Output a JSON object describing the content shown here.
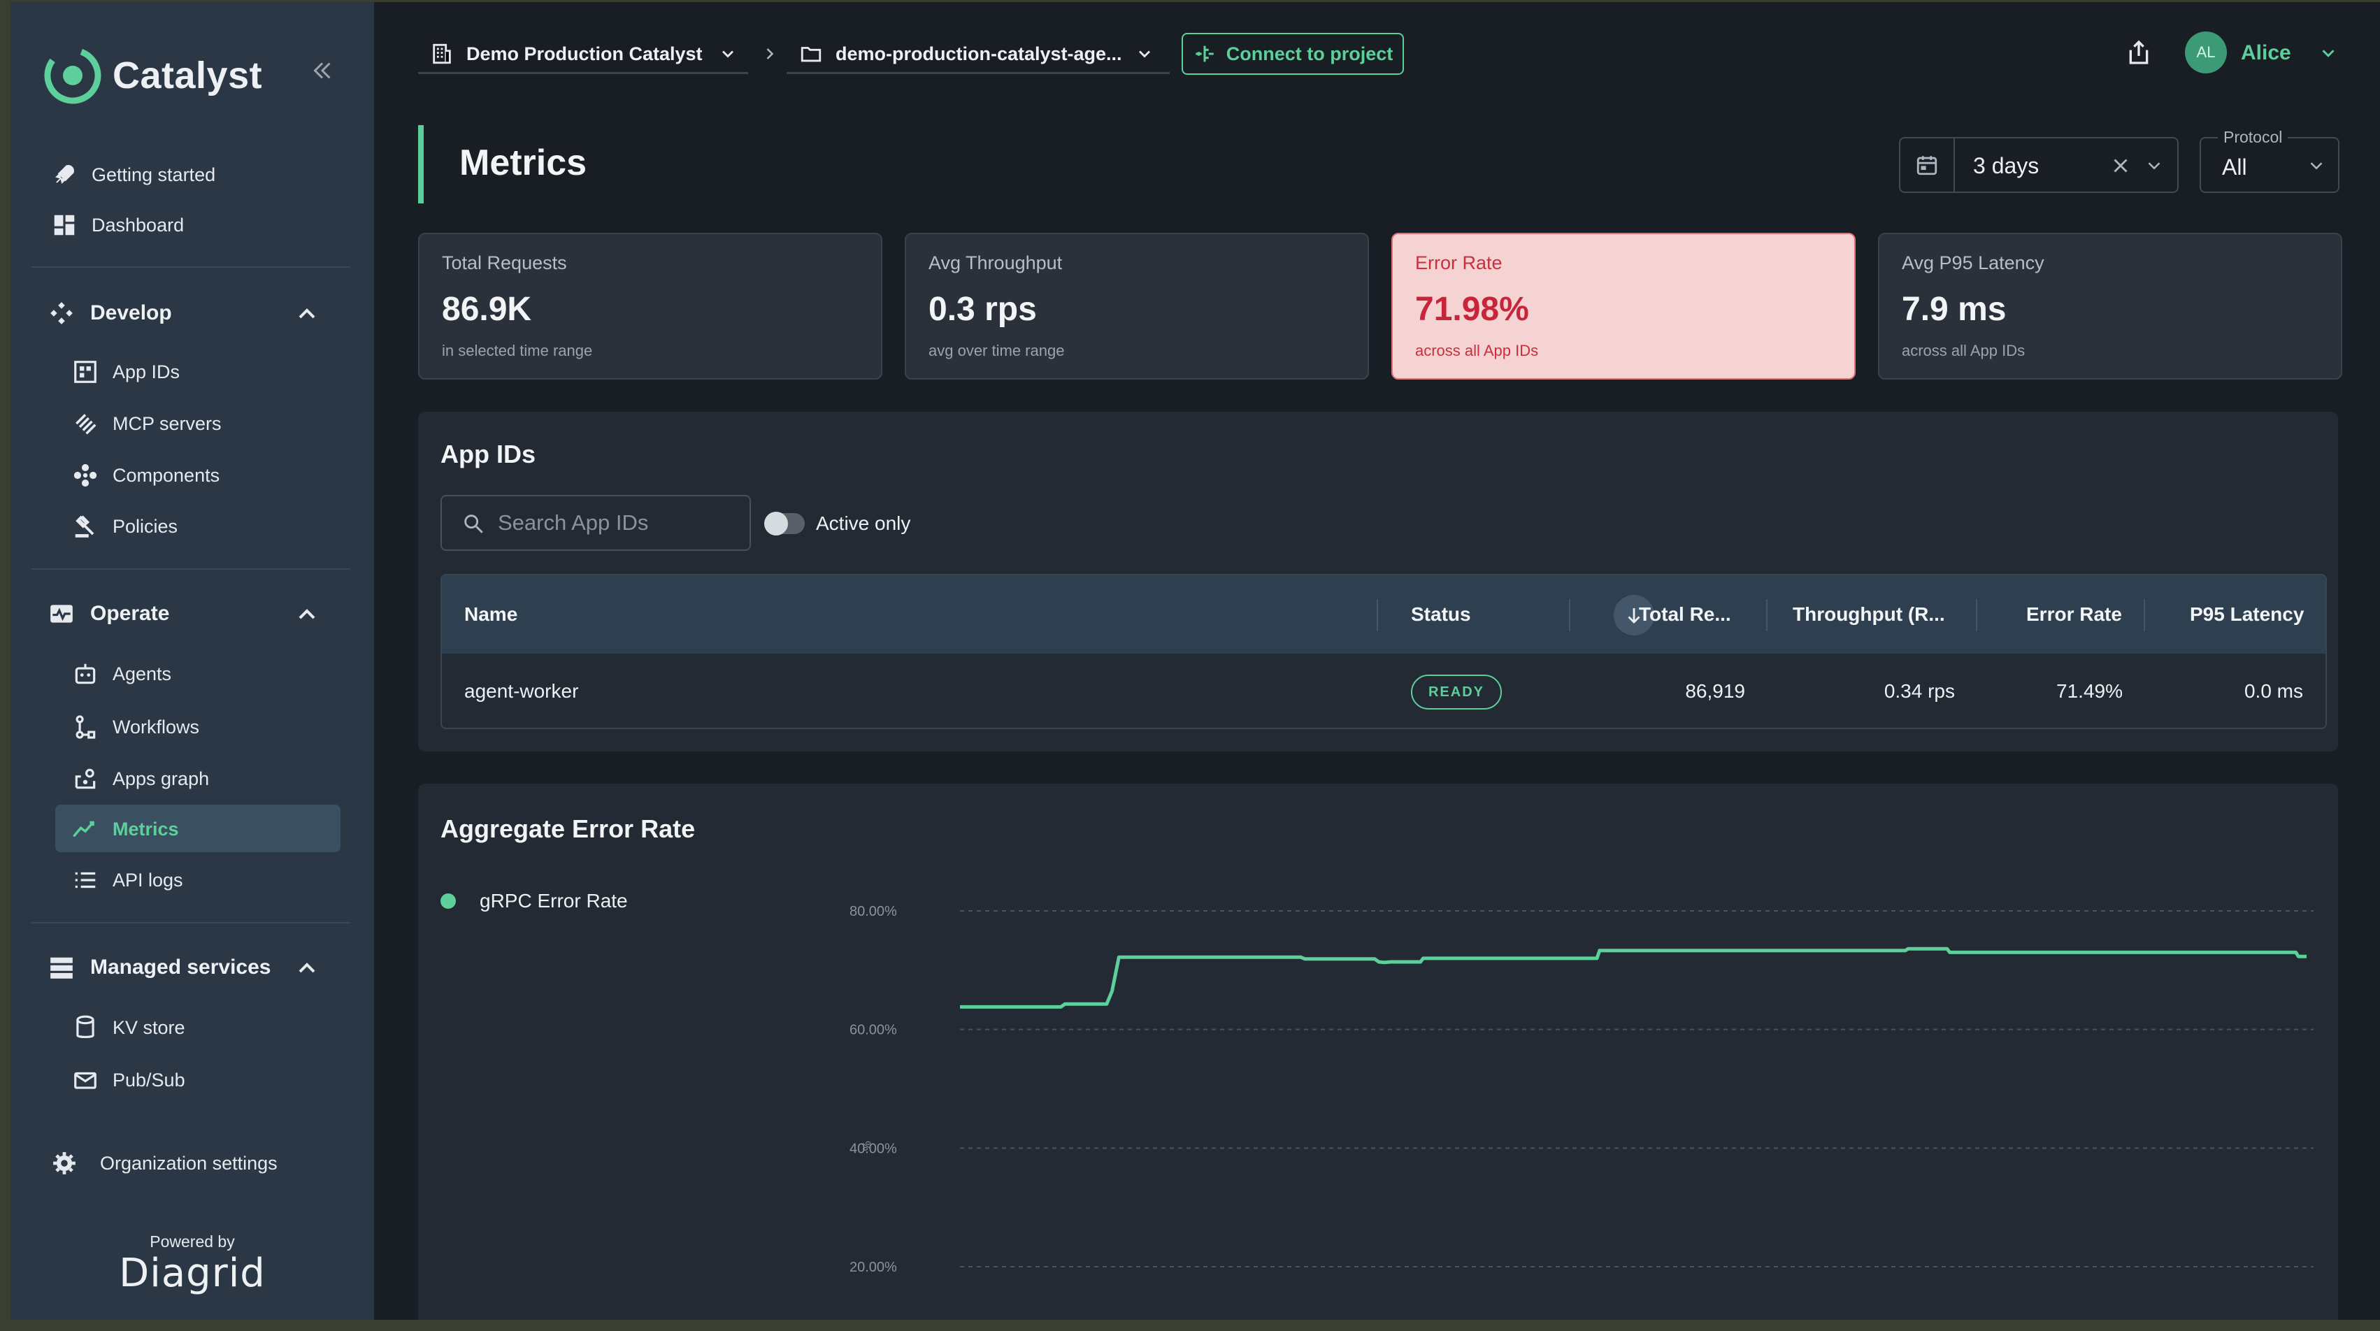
{
  "app": {
    "name": "Catalyst"
  },
  "sidebar": {
    "top_items": [
      {
        "label": "Getting started",
        "icon": "rocket-icon"
      },
      {
        "label": "Dashboard",
        "icon": "dashboard-icon"
      }
    ],
    "develop": {
      "label": "Develop",
      "items": [
        {
          "label": "App IDs",
          "icon": "app-ids-icon"
        },
        {
          "label": "MCP servers",
          "icon": "mcp-icon"
        },
        {
          "label": "Components",
          "icon": "components-icon"
        },
        {
          "label": "Policies",
          "icon": "gavel-icon"
        }
      ]
    },
    "operate": {
      "label": "Operate",
      "items": [
        {
          "label": "Agents",
          "icon": "robot-icon"
        },
        {
          "label": "Workflows",
          "icon": "workflow-icon"
        },
        {
          "label": "Apps graph",
          "icon": "graph-icon"
        },
        {
          "label": "Metrics",
          "icon": "metrics-icon",
          "active": true
        },
        {
          "label": "API logs",
          "icon": "list-icon"
        }
      ]
    },
    "managed": {
      "label": "Managed services",
      "items": [
        {
          "label": "KV store",
          "icon": "database-icon"
        },
        {
          "label": "Pub/Sub",
          "icon": "mail-icon"
        }
      ]
    },
    "org_settings": "Organization settings",
    "powered_by": "Powered by",
    "powered_brand": "Diagrid"
  },
  "topbar": {
    "org": "Demo Production Catalyst",
    "project": "demo-production-catalyst-age...",
    "connect": "Connect to project",
    "user_initials": "AL",
    "user_name": "Alice"
  },
  "page": {
    "title": "Metrics",
    "date_range": "3 days",
    "protocol_label": "Protocol",
    "protocol_value": "All"
  },
  "stats": [
    {
      "label": "Total Requests",
      "value": "86.9K",
      "sub": "in selected time range"
    },
    {
      "label": "Avg Throughput",
      "value": "0.3 rps",
      "sub": "avg over time range"
    },
    {
      "label": "Error Rate",
      "value": "71.98%",
      "sub": "across all App IDs"
    },
    {
      "label": "Avg P95 Latency",
      "value": "7.9 ms",
      "sub": "across all App IDs"
    }
  ],
  "app_ids": {
    "title": "App IDs",
    "search_placeholder": "Search App IDs",
    "toggle_label": "Active only",
    "columns": [
      "Name",
      "Status",
      "Total Re...",
      "Throughput (R...",
      "Error Rate",
      "P95 Latency"
    ],
    "rows": [
      {
        "name": "agent-worker",
        "status": "READY",
        "total": "86,919",
        "throughput": "0.34 rps",
        "error_rate": "71.49%",
        "p95": "0.0 ms"
      }
    ]
  },
  "colors": {
    "accent": "#5ccf9b",
    "error_bg": "#f5d3d2",
    "error_text": "#c8243a"
  },
  "chart_data": {
    "type": "line",
    "title": "Aggregate Error Rate",
    "ylabel": "%",
    "yticks": [
      "80.00%",
      "60.00%",
      "40.00%",
      "20.00%"
    ],
    "ylim": [
      20,
      80
    ],
    "grid": true,
    "legend_position": "left",
    "series": [
      {
        "name": "gRPC Error Rate",
        "color": "#5ccf9b",
        "points": [
          [
            0,
            63.8
          ],
          [
            7.5,
            63.8
          ],
          [
            7.8,
            64.3
          ],
          [
            10.9,
            64.3
          ],
          [
            11.3,
            66.5
          ],
          [
            11.8,
            72.2
          ],
          [
            25.3,
            72.2
          ],
          [
            25.6,
            71.9
          ],
          [
            30.8,
            71.9
          ],
          [
            31.1,
            71.4
          ],
          [
            31.5,
            71.3
          ],
          [
            32.0,
            71.4
          ],
          [
            34.2,
            71.4
          ],
          [
            34.4,
            72.0
          ],
          [
            47.3,
            72.0
          ],
          [
            47.5,
            73.3
          ],
          [
            70.2,
            73.3
          ],
          [
            70.4,
            73.6
          ],
          [
            73.3,
            73.6
          ],
          [
            73.5,
            73.0
          ],
          [
            99.2,
            73.0
          ],
          [
            99.4,
            72.3
          ],
          [
            100,
            72.3
          ]
        ]
      }
    ]
  }
}
